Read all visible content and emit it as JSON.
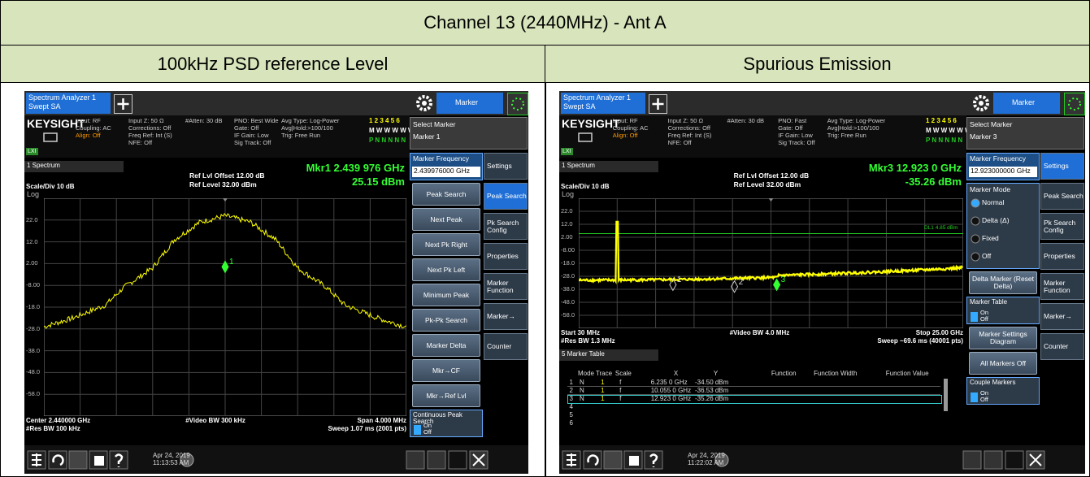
{
  "header": {
    "title": "Channel 13 (2440MHz) - Ant A",
    "left": "100kHz PSD reference Level",
    "right": "Spurious Emission"
  },
  "screens": [
    {
      "tab": [
        "Spectrum Analyzer 1",
        "Swept SA"
      ],
      "menu": "Marker",
      "brand": "KEYSIGHT",
      "lxi": "LXI",
      "info": [
        [
          "Input: RF",
          "Coupling: AC",
          "Align: Off"
        ],
        [
          "Input Z: 50 Ω",
          "Corrections: Off",
          "Freq Ref: Int (S)",
          "NFE: Off"
        ],
        [
          "#Atten: 30 dB"
        ],
        [
          "PNO: Best Wide",
          "Gate: Off",
          "IF Gain: Low",
          "Sig Track: Off"
        ],
        [
          "Avg Type: Log-Power",
          "Avg|Hold:>100/100",
          "Trig: Free Run"
        ]
      ],
      "traces": [
        "1 2 3 4 5 6",
        "M W W W W W",
        "P N N N N N"
      ],
      "select": [
        "Select Marker",
        "Marker 1"
      ],
      "window": "1 Spectrum",
      "ref": [
        "Ref Lvl Offset 12.00 dB",
        "Ref Level 32.00 dBm"
      ],
      "mkr": [
        "Mkr1 2.439 976 GHz",
        "25.15 dBm"
      ],
      "scale": "Scale/Div 10 dB",
      "log": "Log",
      "ylabels": [
        "22.0",
        "12.0",
        "2.00",
        "-8.00",
        "-18.0",
        "-28.0",
        "-38.0",
        "-48.0",
        "-58.0"
      ],
      "marker_labels": [
        "1"
      ],
      "bottom_left": [
        "Center 2.440000 GHz",
        "#Res BW 100 kHz"
      ],
      "bottom_center": [
        "#Video BW 300 kHz"
      ],
      "bottom_right": [
        "Span 4.000 MHz",
        "Sweep 1.07 ms (2001 pts)"
      ],
      "keys": [
        {
          "label": "Marker Frequency",
          "value": "2.439976000 GHz"
        },
        {
          "label": "Peak Search"
        },
        {
          "label": "Next Peak"
        },
        {
          "label": "Next Pk Right"
        },
        {
          "label": "Next Pk Left"
        },
        {
          "label": "Minimum Peak"
        },
        {
          "label": "Pk-Pk Search"
        },
        {
          "label": "Marker Delta"
        },
        {
          "label": "Mkr→CF"
        },
        {
          "label": "Mkr→Ref Lvl"
        },
        {
          "label": "Continuous Peak Search",
          "on": "On",
          "off": "Off"
        }
      ],
      "tabs": [
        "Settings",
        "Peak Search",
        "Pk Search Config",
        "Properties",
        "Marker Function",
        "Marker→",
        "Counter"
      ],
      "active_tab": 1,
      "date": [
        "Apr 24, 2019",
        "11:13:53 AM"
      ]
    },
    {
      "tab": [
        "Spectrum Analyzer 1",
        "Swept SA"
      ],
      "menu": "Marker",
      "brand": "KEYSIGHT",
      "lxi": "LXI",
      "info": [
        [
          "Input: RF",
          "Coupling: AC",
          "Align: Off"
        ],
        [
          "Input Z: 50 Ω",
          "Corrections: Off",
          "Freq Ref: Int (S)",
          "NFE: Off"
        ],
        [
          "#Atten: 30 dB"
        ],
        [
          "PNO: Fast",
          "Gate: Off",
          "IF Gain: Low",
          "Sig Track: Off"
        ],
        [
          "Avg Type: Log-Power",
          "Avg|Hold:>100/100",
          "Trig: Free Run"
        ]
      ],
      "traces": [
        "1 2 3 4 5 6",
        "M W W W W W",
        "P N N N N N"
      ],
      "select": [
        "Select Marker",
        "Marker 3"
      ],
      "window": "1 Spectrum",
      "ref": [
        "Ref Lvl Offset 12.00 dB",
        "Ref Level 32.00 dBm"
      ],
      "mkr": [
        "Mkr3  12.923 0 GHz",
        "-35.26 dBm"
      ],
      "scale": "Scale/Div 10 dB",
      "log": "Log",
      "ylabels": [
        "22.0",
        "12.0",
        "2.00",
        "-8.00",
        "-18.0",
        "-28.0",
        "-38.0",
        "-48.0",
        "-58.0"
      ],
      "display_line": "DL1 4.85 dBm",
      "marker_labels": [
        "1",
        "2",
        "3"
      ],
      "bottom_left": [
        "Start 30 MHz",
        "#Res BW 1.3 MHz"
      ],
      "bottom_center": [
        "#Video BW 4.0 MHz"
      ],
      "bottom_right": [
        "Stop 25.00 GHz",
        "Sweep ~69.6 ms (40001 pts)"
      ],
      "table": {
        "window": "5 Marker Table",
        "columns": [
          "Mode",
          "Trace",
          "Scale",
          "X",
          "Y",
          "Function",
          "Function Width",
          "Function Value"
        ],
        "rows": [
          [
            "1",
            "N",
            "1",
            "f",
            "6.235 0 GHz",
            "-34.50 dBm"
          ],
          [
            "2",
            "N",
            "1",
            "f",
            "10.055 0 GHz",
            "-36.53 dBm"
          ],
          [
            "3",
            "N",
            "1",
            "f",
            "12.923 0 GHz",
            "-35.26 dBm"
          ]
        ],
        "empty_rows": [
          "4",
          "5",
          "6"
        ]
      },
      "keys": [
        {
          "label": "Marker Frequency",
          "value": "12.923000000 GHz"
        },
        {
          "label": "Marker Mode",
          "options": [
            "Normal",
            "Delta (Δ)",
            "Fixed",
            "Off"
          ]
        },
        {
          "label": "Delta Marker (Reset Delta)"
        },
        {
          "label": "Marker Table",
          "on": "On",
          "off": "Off"
        },
        {
          "label": "Marker Settings Diagram"
        },
        {
          "label": "All Markers Off"
        },
        {
          "label": "Couple Markers",
          "on": "On",
          "off": "Off"
        }
      ],
      "tabs": [
        "Settings",
        "Peak Search",
        "Pk Search Config",
        "Properties",
        "Marker Function",
        "Marker→",
        "Counter"
      ],
      "active_tab": 0,
      "date": [
        "Apr 24, 2019",
        "11:22:02 AM"
      ]
    }
  ]
}
